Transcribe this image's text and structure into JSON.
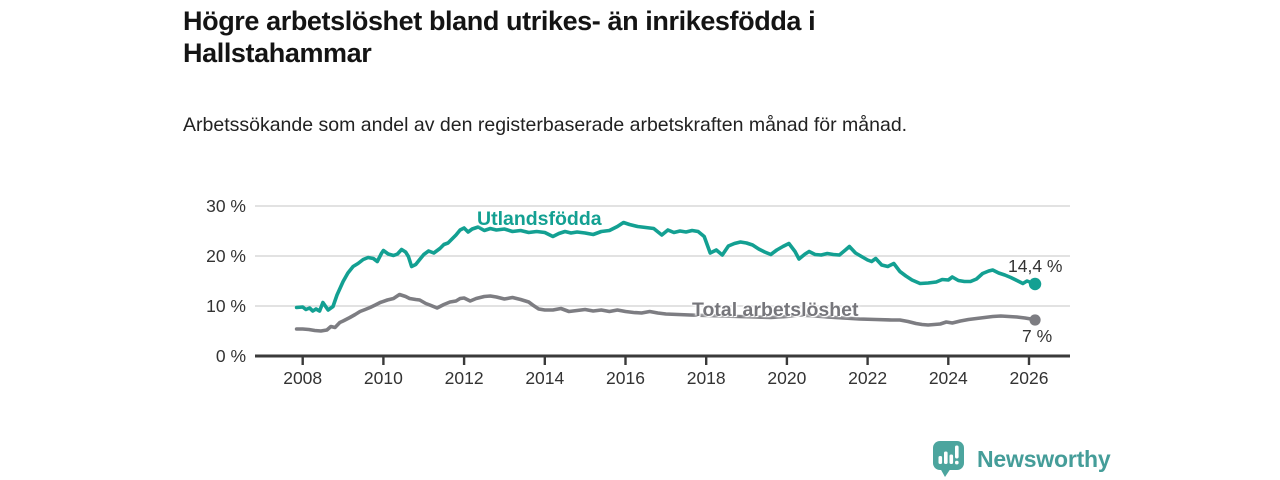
{
  "header": {
    "title": "Högre arbetslöshet bland utrikes- än inrikesfödda i Hallstahammar",
    "subtitle": "Arbetssökande som andel av den registerbaserade arbetskraften månad för månad."
  },
  "footer": {
    "brand": "Newsworthy",
    "logo_icon": "bar-chart-speech-bubble-icon"
  },
  "colors": {
    "foreign_born": "#13a092",
    "total": "#7d7d82",
    "axis": "#3a3a3a",
    "grid": "#d9d9d9",
    "tick_text": "#333333"
  },
  "chart_data": {
    "type": "line",
    "unit": "%",
    "xlim": [
      2007.7,
      2027.2
    ],
    "ylim": [
      0,
      30
    ],
    "grid": "horizontal",
    "x_tick_years": [
      2008,
      2010,
      2012,
      2014,
      2016,
      2018,
      2020,
      2022,
      2024,
      2026
    ],
    "x_tick_labels": [
      "2008",
      "2010",
      "2012",
      "2014",
      "2016",
      "2018",
      "2020",
      "2022",
      "2024",
      "2026"
    ],
    "y_tick_values": [
      0,
      10,
      20,
      30
    ],
    "y_tick_labels": [
      "0 %",
      "10 %",
      "20 %",
      "30 %"
    ],
    "series": [
      {
        "name": "Utlandsfödda",
        "color_key": "foreign_born",
        "end_label": "14,4 %",
        "end_value": 14.4,
        "points": [
          [
            2007.85,
            9.7
          ],
          [
            2008.0,
            9.8
          ],
          [
            2008.08,
            9.3
          ],
          [
            2008.17,
            9.6
          ],
          [
            2008.25,
            9.0
          ],
          [
            2008.33,
            9.4
          ],
          [
            2008.42,
            9.0
          ],
          [
            2008.5,
            10.7
          ],
          [
            2008.63,
            9.2
          ],
          [
            2008.75,
            9.9
          ],
          [
            2008.85,
            12.2
          ],
          [
            2009.0,
            14.9
          ],
          [
            2009.12,
            16.6
          ],
          [
            2009.25,
            17.9
          ],
          [
            2009.37,
            18.5
          ],
          [
            2009.5,
            19.3
          ],
          [
            2009.62,
            19.7
          ],
          [
            2009.75,
            19.5
          ],
          [
            2009.85,
            18.9
          ],
          [
            2009.95,
            20.5
          ],
          [
            2010.0,
            21.1
          ],
          [
            2010.12,
            20.4
          ],
          [
            2010.25,
            20.1
          ],
          [
            2010.35,
            20.4
          ],
          [
            2010.45,
            21.3
          ],
          [
            2010.55,
            20.8
          ],
          [
            2010.62,
            19.9
          ],
          [
            2010.7,
            17.9
          ],
          [
            2010.8,
            18.3
          ],
          [
            2010.9,
            19.3
          ],
          [
            2011.0,
            20.3
          ],
          [
            2011.12,
            21.0
          ],
          [
            2011.25,
            20.6
          ],
          [
            2011.4,
            21.5
          ],
          [
            2011.5,
            22.3
          ],
          [
            2011.6,
            22.6
          ],
          [
            2011.7,
            23.4
          ],
          [
            2011.8,
            24.2
          ],
          [
            2011.9,
            25.2
          ],
          [
            2012.0,
            25.6
          ],
          [
            2012.1,
            24.8
          ],
          [
            2012.2,
            25.4
          ],
          [
            2012.35,
            25.8
          ],
          [
            2012.5,
            25.1
          ],
          [
            2012.65,
            25.5
          ],
          [
            2012.8,
            25.2
          ],
          [
            2013.0,
            25.4
          ],
          [
            2013.2,
            24.9
          ],
          [
            2013.4,
            25.1
          ],
          [
            2013.6,
            24.7
          ],
          [
            2013.8,
            24.9
          ],
          [
            2014.0,
            24.7
          ],
          [
            2014.2,
            23.9
          ],
          [
            2014.35,
            24.5
          ],
          [
            2014.5,
            24.9
          ],
          [
            2014.65,
            24.6
          ],
          [
            2014.8,
            24.8
          ],
          [
            2015.0,
            24.6
          ],
          [
            2015.2,
            24.3
          ],
          [
            2015.4,
            24.9
          ],
          [
            2015.6,
            25.1
          ],
          [
            2015.8,
            25.9
          ],
          [
            2015.95,
            26.7
          ],
          [
            2016.1,
            26.3
          ],
          [
            2016.3,
            25.9
          ],
          [
            2016.5,
            25.7
          ],
          [
            2016.7,
            25.5
          ],
          [
            2016.9,
            24.2
          ],
          [
            2017.05,
            25.2
          ],
          [
            2017.2,
            24.7
          ],
          [
            2017.35,
            25.0
          ],
          [
            2017.5,
            24.8
          ],
          [
            2017.65,
            25.1
          ],
          [
            2017.8,
            24.9
          ],
          [
            2017.95,
            23.9
          ],
          [
            2018.1,
            20.6
          ],
          [
            2018.25,
            21.2
          ],
          [
            2018.4,
            20.2
          ],
          [
            2018.55,
            22.0
          ],
          [
            2018.7,
            22.5
          ],
          [
            2018.85,
            22.8
          ],
          [
            2019.0,
            22.6
          ],
          [
            2019.15,
            22.2
          ],
          [
            2019.3,
            21.4
          ],
          [
            2019.45,
            20.8
          ],
          [
            2019.6,
            20.3
          ],
          [
            2019.75,
            21.2
          ],
          [
            2019.9,
            21.9
          ],
          [
            2020.05,
            22.5
          ],
          [
            2020.2,
            20.9
          ],
          [
            2020.3,
            19.4
          ],
          [
            2020.45,
            20.4
          ],
          [
            2020.55,
            20.9
          ],
          [
            2020.7,
            20.3
          ],
          [
            2020.85,
            20.2
          ],
          [
            2021.0,
            20.5
          ],
          [
            2021.15,
            20.3
          ],
          [
            2021.3,
            20.2
          ],
          [
            2021.45,
            21.2
          ],
          [
            2021.55,
            21.9
          ],
          [
            2021.7,
            20.6
          ],
          [
            2021.85,
            19.9
          ],
          [
            2022.0,
            19.2
          ],
          [
            2022.1,
            18.9
          ],
          [
            2022.2,
            19.5
          ],
          [
            2022.35,
            18.2
          ],
          [
            2022.5,
            17.9
          ],
          [
            2022.65,
            18.5
          ],
          [
            2022.8,
            16.9
          ],
          [
            2022.95,
            16.0
          ],
          [
            2023.1,
            15.2
          ],
          [
            2023.3,
            14.5
          ],
          [
            2023.5,
            14.6
          ],
          [
            2023.7,
            14.8
          ],
          [
            2023.85,
            15.3
          ],
          [
            2024.0,
            15.2
          ],
          [
            2024.1,
            15.8
          ],
          [
            2024.25,
            15.1
          ],
          [
            2024.4,
            14.9
          ],
          [
            2024.55,
            14.9
          ],
          [
            2024.7,
            15.4
          ],
          [
            2024.85,
            16.5
          ],
          [
            2025.0,
            17.0
          ],
          [
            2025.1,
            17.2
          ],
          [
            2025.25,
            16.6
          ],
          [
            2025.4,
            16.2
          ],
          [
            2025.55,
            15.7
          ],
          [
            2025.7,
            15.1
          ],
          [
            2025.85,
            14.5
          ],
          [
            2025.95,
            15.0
          ],
          [
            2026.05,
            14.7
          ],
          [
            2026.15,
            14.4
          ]
        ]
      },
      {
        "name": "Total arbetslöshet",
        "color_key": "total",
        "end_label": "7 %",
        "end_value": 7.2,
        "points": [
          [
            2007.85,
            5.4
          ],
          [
            2008.0,
            5.4
          ],
          [
            2008.15,
            5.3
          ],
          [
            2008.3,
            5.1
          ],
          [
            2008.45,
            5.0
          ],
          [
            2008.6,
            5.2
          ],
          [
            2008.7,
            5.9
          ],
          [
            2008.8,
            5.7
          ],
          [
            2008.92,
            6.7
          ],
          [
            2009.0,
            7.0
          ],
          [
            2009.17,
            7.7
          ],
          [
            2009.3,
            8.3
          ],
          [
            2009.42,
            8.9
          ],
          [
            2009.55,
            9.3
          ],
          [
            2009.67,
            9.7
          ],
          [
            2009.8,
            10.2
          ],
          [
            2009.92,
            10.7
          ],
          [
            2010.1,
            11.2
          ],
          [
            2010.25,
            11.5
          ],
          [
            2010.4,
            12.3
          ],
          [
            2010.55,
            11.9
          ],
          [
            2010.65,
            11.5
          ],
          [
            2010.8,
            11.3
          ],
          [
            2010.9,
            11.2
          ],
          [
            2011.05,
            10.5
          ],
          [
            2011.15,
            10.2
          ],
          [
            2011.33,
            9.6
          ],
          [
            2011.5,
            10.3
          ],
          [
            2011.65,
            10.8
          ],
          [
            2011.8,
            11.0
          ],
          [
            2011.9,
            11.5
          ],
          [
            2012.0,
            11.6
          ],
          [
            2012.15,
            11.0
          ],
          [
            2012.3,
            11.5
          ],
          [
            2012.5,
            11.9
          ],
          [
            2012.65,
            12.0
          ],
          [
            2012.8,
            11.8
          ],
          [
            2013.0,
            11.4
          ],
          [
            2013.2,
            11.7
          ],
          [
            2013.4,
            11.3
          ],
          [
            2013.6,
            10.8
          ],
          [
            2013.7,
            10.2
          ],
          [
            2013.85,
            9.4
          ],
          [
            2014.0,
            9.2
          ],
          [
            2014.2,
            9.2
          ],
          [
            2014.4,
            9.5
          ],
          [
            2014.6,
            8.9
          ],
          [
            2014.8,
            9.1
          ],
          [
            2015.0,
            9.3
          ],
          [
            2015.2,
            9.0
          ],
          [
            2015.4,
            9.2
          ],
          [
            2015.6,
            8.9
          ],
          [
            2015.8,
            9.2
          ],
          [
            2016.0,
            8.9
          ],
          [
            2016.2,
            8.7
          ],
          [
            2016.4,
            8.6
          ],
          [
            2016.6,
            8.9
          ],
          [
            2016.8,
            8.6
          ],
          [
            2017.0,
            8.4
          ],
          [
            2017.3,
            8.3
          ],
          [
            2017.6,
            8.2
          ],
          [
            2018.0,
            8.1
          ],
          [
            2018.4,
            8.0
          ],
          [
            2018.8,
            7.9
          ],
          [
            2019.2,
            7.8
          ],
          [
            2019.6,
            7.7
          ],
          [
            2020.0,
            7.9
          ],
          [
            2020.3,
            8.2
          ],
          [
            2020.7,
            8.0
          ],
          [
            2021.0,
            7.8
          ],
          [
            2021.4,
            7.6
          ],
          [
            2021.8,
            7.4
          ],
          [
            2022.2,
            7.3
          ],
          [
            2022.6,
            7.2
          ],
          [
            2022.8,
            7.2
          ],
          [
            2023.0,
            6.9
          ],
          [
            2023.2,
            6.5
          ],
          [
            2023.35,
            6.3
          ],
          [
            2023.5,
            6.2
          ],
          [
            2023.65,
            6.3
          ],
          [
            2023.8,
            6.4
          ],
          [
            2023.95,
            6.8
          ],
          [
            2024.1,
            6.6
          ],
          [
            2024.3,
            7.0
          ],
          [
            2024.5,
            7.3
          ],
          [
            2024.7,
            7.5
          ],
          [
            2024.9,
            7.7
          ],
          [
            2025.1,
            7.9
          ],
          [
            2025.3,
            8.0
          ],
          [
            2025.5,
            7.9
          ],
          [
            2025.7,
            7.8
          ],
          [
            2025.9,
            7.6
          ],
          [
            2026.05,
            7.4
          ],
          [
            2026.15,
            7.2
          ]
        ]
      }
    ]
  }
}
